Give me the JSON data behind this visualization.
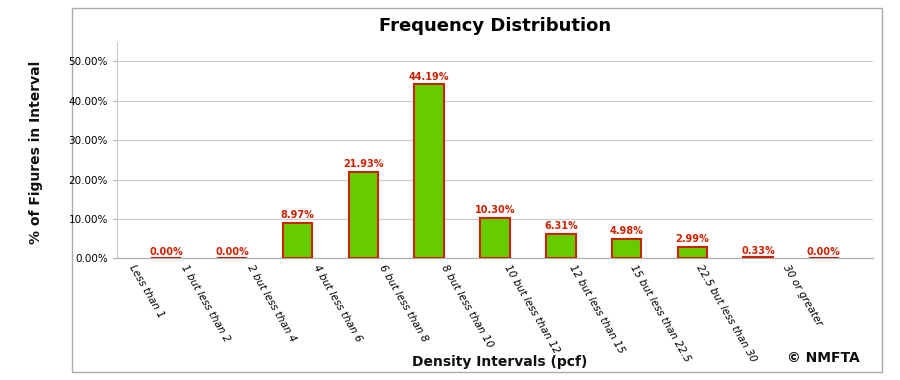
{
  "title": "Frequency Distribution",
  "xlabel": "Density Intervals (pcf)",
  "ylabel": "% of Figures in Interval",
  "categories": [
    "Less than 1",
    "1 but less than 2",
    "2 but less than 4",
    "4 but less than 6",
    "6 but less than 8",
    "8 but less than 10",
    "10 but less than 12",
    "12 but less than 15",
    "15 but less than 22.5",
    "22.5 but less than 30",
    "30 or greater"
  ],
  "values": [
    0.0,
    0.0,
    8.97,
    21.93,
    44.19,
    10.3,
    6.31,
    4.98,
    2.99,
    0.33,
    0.0
  ],
  "labels": [
    "0.00%",
    "0.00%",
    "8.97%",
    "21.93%",
    "44.19%",
    "10.30%",
    "6.31%",
    "4.98%",
    "2.99%",
    "0.33%",
    "0.00%"
  ],
  "bar_face_color": "#66cc00",
  "bar_edge_color": "#cc2200",
  "bar_edge_width": 1.5,
  "ylim": [
    0,
    55
  ],
  "yticks": [
    0,
    10,
    20,
    30,
    40,
    50
  ],
  "ytick_labels": [
    "0.00%",
    "10.00%",
    "20.00%",
    "30.00%",
    "40.00%",
    "50.00%"
  ],
  "title_fontsize": 13,
  "title_fontweight": "bold",
  "axis_label_fontsize": 10,
  "axis_label_fontweight": "bold",
  "tick_label_fontsize": 7.5,
  "bar_label_fontsize": 7,
  "bar_label_color": "#cc2200",
  "bar_label_fontweight": "bold",
  "copyright_text": "© NMFTA",
  "panel_background": "#ffffff",
  "grid_color": "#cccccc",
  "ylabel_rotation": 90,
  "bar_width": 0.45,
  "xtick_rotation": -60
}
